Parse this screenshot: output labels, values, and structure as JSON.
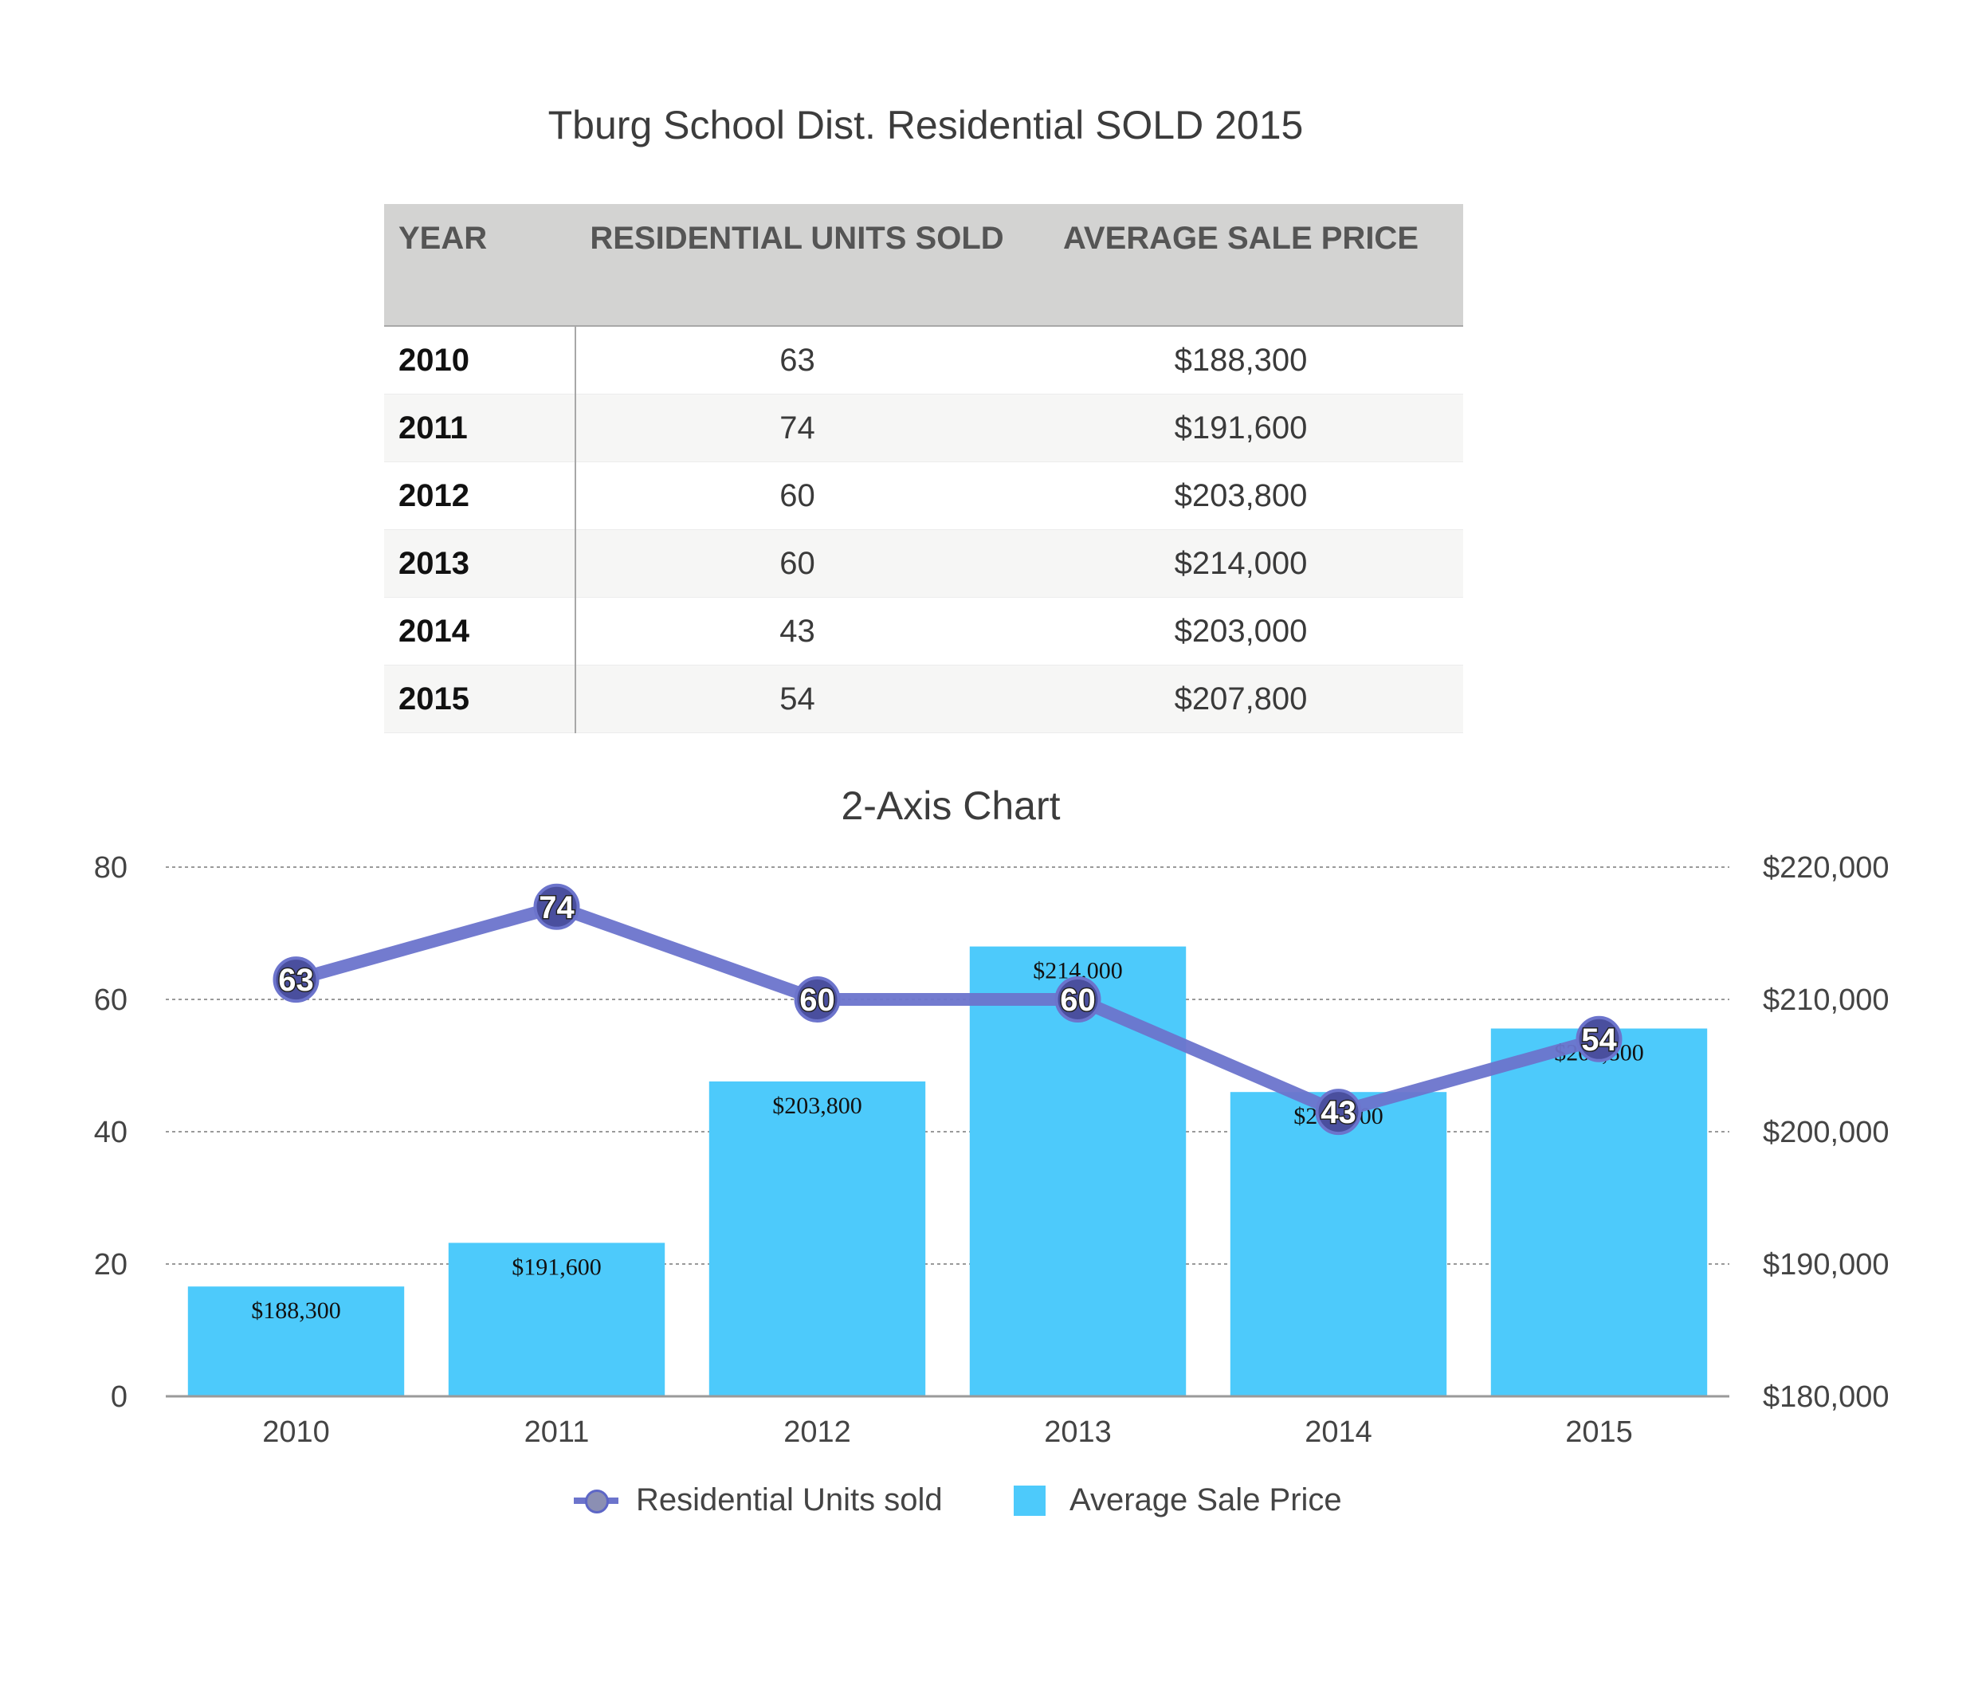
{
  "title": "Tburg School Dist. Residential SOLD  2015",
  "table": {
    "headers": [
      "YEAR",
      "RESIDENTIAL UNITS SOLD",
      "AVERAGE SALE PRICE"
    ],
    "rows": [
      [
        "2010",
        "63",
        "$188,300"
      ],
      [
        "2011",
        "74",
        "$191,600"
      ],
      [
        "2012",
        "60",
        "$203,800"
      ],
      [
        "2013",
        "60",
        "$214,000"
      ],
      [
        "2014",
        "43",
        "$203,000"
      ],
      [
        "2015",
        "54",
        "$207,800"
      ]
    ]
  },
  "chart_data": {
    "type": "bar",
    "title": "2-Axis Chart",
    "categories": [
      "2010",
      "2011",
      "2012",
      "2013",
      "2014",
      "2015"
    ],
    "series": [
      {
        "name": "Residential Units sold",
        "type": "line",
        "axis": "left",
        "values": [
          63,
          74,
          60,
          60,
          43,
          54
        ],
        "color": "#6c74cc"
      },
      {
        "name": "Average Sale Price",
        "type": "bar",
        "axis": "right",
        "values": [
          188300,
          191600,
          203800,
          214000,
          203000,
          207800
        ],
        "color": "#4dcafb"
      }
    ],
    "bar_labels": [
      "$188,300",
      "$191,600",
      "$203,800",
      "$214,000",
      "$203,000",
      "$207,800"
    ],
    "y_left": {
      "range": [
        0,
        80
      ],
      "ticks": [
        "0",
        "20",
        "40",
        "60",
        "80"
      ]
    },
    "y_right": {
      "range": [
        180000,
        220000
      ],
      "ticks": [
        "$180,000",
        "$190,000",
        "$200,000",
        "$210,000",
        "$220,000"
      ]
    },
    "grid": true,
    "legend_position": "bottom"
  }
}
